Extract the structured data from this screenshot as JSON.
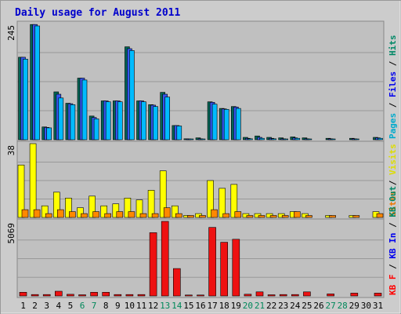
{
  "chart_data": {
    "type": "bar",
    "title": "Daily usage for August 2011",
    "categories": [
      "1",
      "2",
      "3",
      "4",
      "5",
      "6",
      "7",
      "8",
      "9",
      "10",
      "11",
      "12",
      "13",
      "14",
      "15",
      "16",
      "17",
      "18",
      "19",
      "20",
      "21",
      "22",
      "23",
      "24",
      "25",
      "26",
      "27",
      "28",
      "29",
      "30",
      "31"
    ],
    "weekend_days": [
      "6",
      "7",
      "13",
      "14",
      "20",
      "21",
      "27",
      "28"
    ],
    "grid": true,
    "panels": [
      {
        "id": "top",
        "ymax_label": "245",
        "ylim": [
          0,
          245
        ],
        "right_labels": [
          {
            "text": "Pages",
            "color": "#00aacc"
          },
          {
            "text": " / ",
            "color": "#000000"
          },
          {
            "text": "Files",
            "color": "#0000ee"
          },
          {
            "text": " / ",
            "color": "#000000"
          },
          {
            "text": "Hits",
            "color": "#008866"
          }
        ],
        "series": [
          {
            "name": "Hits",
            "color": "#006655",
            "values": [
              174,
              243,
              27,
              101,
              77,
              130,
              50,
              82,
              82,
              196,
              82,
              74,
              100,
              30,
              2,
              4,
              80,
              66,
              70,
              5,
              8,
              5,
              4,
              6,
              4,
              0,
              3,
              0,
              3,
              0,
              5
            ]
          },
          {
            "name": "Files",
            "color": "#3355ee",
            "values": [
              174,
              243,
              26,
              96,
              76,
              130,
              47,
              82,
              82,
              192,
              82,
              73,
              96,
              30,
              1,
              2,
              79,
              65,
              69,
              3,
              5,
              3,
              2,
              4,
              2,
              0,
              2,
              0,
              2,
              0,
              4
            ]
          },
          {
            "name": "Pages",
            "color": "#00bbff",
            "values": [
              170,
              240,
              25,
              88,
              74,
              126,
              44,
              80,
              80,
              188,
              80,
              70,
              90,
              29,
              1,
              1,
              75,
              64,
              66,
              2,
              3,
              2,
              1,
              3,
              1,
              0,
              1,
              0,
              1,
              0,
              3
            ]
          }
        ]
      },
      {
        "id": "middle",
        "ymax_label": "38",
        "ylim": [
          0,
          38
        ],
        "right_labels": [
          {
            "text": "Sites",
            "color": "#ee7700"
          },
          {
            "text": " / ",
            "color": "#000000"
          },
          {
            "text": "Visits",
            "color": "#dddd00"
          }
        ],
        "series": [
          {
            "name": "Visits",
            "color": "#ffff00",
            "values": [
              27,
              38,
              6,
              13,
              10,
              5,
              11,
              6,
              7,
              10,
              9,
              14,
              24,
              6,
              1,
              2,
              19,
              15,
              17,
              2,
              2,
              2,
              2,
              3,
              2,
              0,
              1,
              0,
              1,
              0,
              3
            ]
          },
          {
            "name": "Sites",
            "color": "#ff8800",
            "values": [
              4,
              4,
              2,
              4,
              3,
              2,
              3,
              2,
              3,
              3,
              2,
              2,
              5,
              2,
              1,
              1,
              4,
              2,
              3,
              1,
              1,
              1,
              1,
              3,
              1,
              0,
              1,
              0,
              1,
              0,
              2
            ]
          }
        ]
      },
      {
        "id": "bottom",
        "ymax_label": "5069",
        "ylim": [
          0,
          5069
        ],
        "right_labels": [
          {
            "text": "KB F",
            "color": "#ff0000"
          },
          {
            "text": " / ",
            "color": "#000000"
          },
          {
            "text": "KB In",
            "color": "#0000ee"
          },
          {
            "text": " / ",
            "color": "#000000"
          },
          {
            "text": "KB Out",
            "color": "#008866"
          }
        ],
        "series": [
          {
            "name": "KB F",
            "color": "#ee1111",
            "values": [
              250,
              95,
              95,
              320,
              110,
              80,
              250,
              250,
              95,
              95,
              95,
              4300,
              5069,
              1860,
              65,
              65,
              4660,
              3650,
              3850,
              120,
              280,
              80,
              95,
              95,
              280,
              0,
              140,
              0,
              190,
              0,
              190
            ]
          }
        ]
      }
    ]
  }
}
